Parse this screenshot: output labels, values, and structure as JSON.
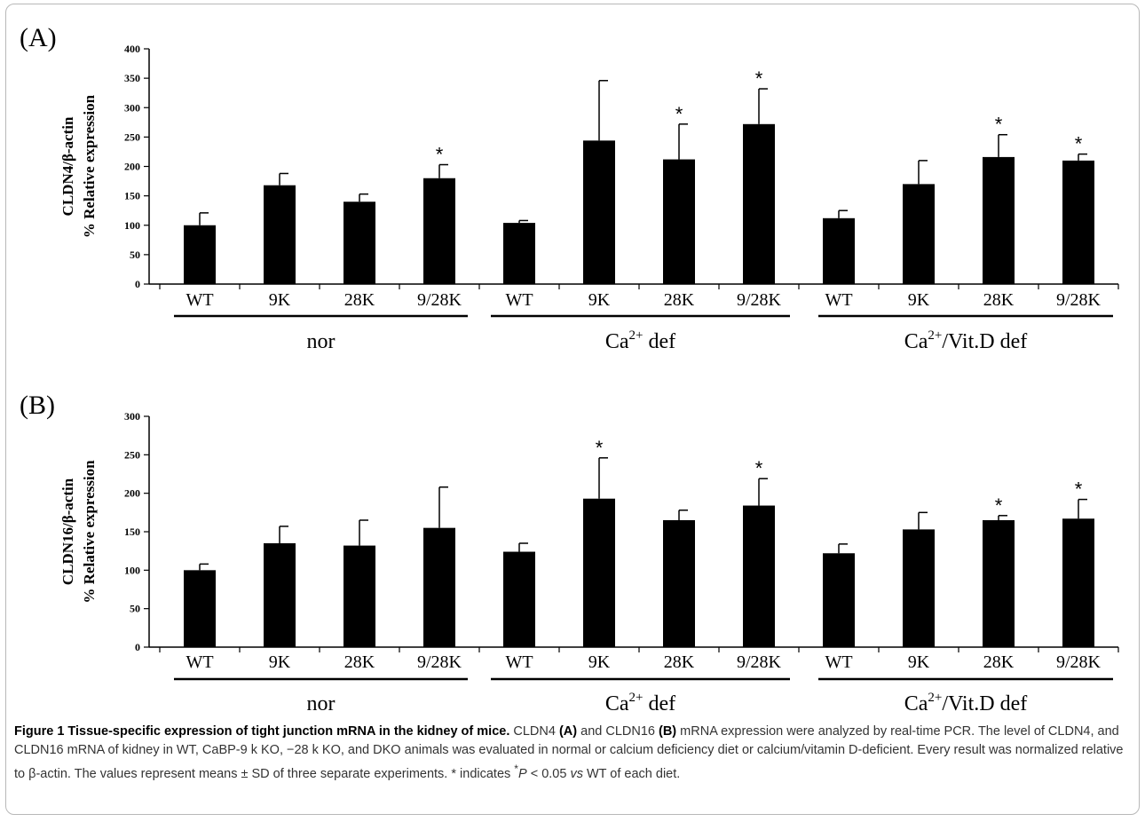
{
  "chart_data": [
    {
      "type": "bar",
      "panel_label": "(A)",
      "ylabel_line1": "CLDN4/β-actin",
      "ylabel_line2": "% Relative expression",
      "ylim": [
        0,
        400
      ],
      "yticks": [
        "0",
        "50",
        "100",
        "150",
        "200",
        "250",
        "300",
        "350",
        "400"
      ],
      "categories": [
        "WT",
        "9K",
        "28K",
        "9/28K",
        "WT",
        "9K",
        "28K",
        "9/28K",
        "WT",
        "9K",
        "28K",
        "9/28K"
      ],
      "values": [
        100,
        168,
        140,
        180,
        104,
        244,
        212,
        272,
        112,
        170,
        216,
        210
      ],
      "errors": [
        21,
        20,
        13,
        23,
        4,
        102,
        60,
        60,
        13,
        40,
        38,
        11
      ],
      "significant": [
        false,
        false,
        false,
        true,
        false,
        false,
        true,
        true,
        false,
        false,
        true,
        true
      ],
      "star_text": "*",
      "bar_color": "#000000",
      "groups": [
        {
          "label": "nor",
          "sup": "",
          "suffix": ""
        },
        {
          "label": "Ca",
          "sup": "2+",
          "suffix": " def"
        },
        {
          "label": "Ca",
          "sup": "2+",
          "suffix": "/Vit.D def"
        }
      ]
    },
    {
      "type": "bar",
      "panel_label": "(B)",
      "ylabel_line1": "CLDN16/β-actin",
      "ylabel_line2": "% Relative expression",
      "ylim": [
        0,
        300
      ],
      "yticks": [
        "0",
        "50",
        "100",
        "150",
        "200",
        "250",
        "300"
      ],
      "categories": [
        "WT",
        "9K",
        "28K",
        "9/28K",
        "WT",
        "9K",
        "28K",
        "9/28K",
        "WT",
        "9K",
        "28K",
        "9/28K"
      ],
      "values": [
        100,
        135,
        132,
        155,
        124,
        193,
        165,
        184,
        122,
        153,
        165,
        167
      ],
      "errors": [
        8,
        22,
        33,
        53,
        11,
        53,
        13,
        35,
        12,
        22,
        6,
        25
      ],
      "significant": [
        false,
        false,
        false,
        false,
        false,
        true,
        false,
        true,
        false,
        false,
        true,
        true
      ],
      "star_text": "*",
      "bar_color": "#000000",
      "groups": [
        {
          "label": "nor",
          "sup": "",
          "suffix": ""
        },
        {
          "label": "Ca",
          "sup": "2+",
          "suffix": " def"
        },
        {
          "label": "Ca",
          "sup": "2+",
          "suffix": "/Vit.D def"
        }
      ]
    }
  ],
  "caption": {
    "title": "Figure 1 Tissue-specific expression of tight junction mRNA in the kidney of mice.",
    "part1": " CLDN4 ",
    "a_label": "(A)",
    "part2": " and CLDN16 ",
    "b_label": "(B)",
    "part3": " mRNA expression were analyzed by real-time PCR. The level of CLDN4, and CLDN16 mRNA of kidney in WT, CaBP-9 k KO, −28 k KO, and DKO animals was evaluated in normal or calcium deficiency diet or calcium/vitamin D-deficient. Every result was normalized relative to β-actin. The values represent means ± SD of three separate experiments. * indicates ",
    "star_sup": "*",
    "p_italic": "P",
    "part4": " < 0.05 ",
    "vs_italic": "vs",
    "part5": " WT of each diet."
  }
}
